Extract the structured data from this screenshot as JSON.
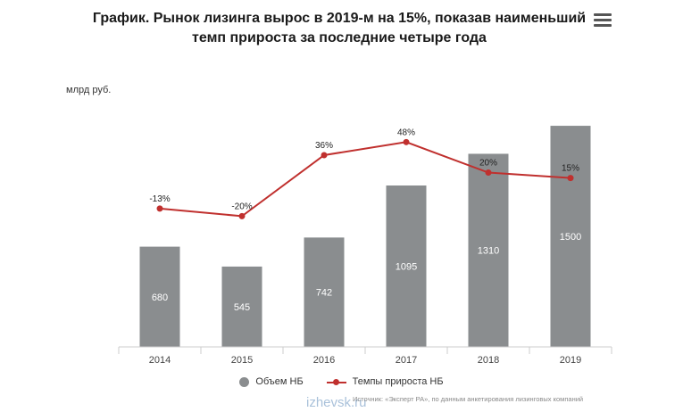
{
  "title": "График. Рынок лизинга вырос в 2019-м на 15%, показав наименьший темп прироста за последние четыре года",
  "unit_label": "млрд руб.",
  "menu_icon": "hamburger-menu-icon",
  "legend": {
    "bars_label": "Объем НБ",
    "line_label": "Темпы прироста НБ"
  },
  "source": "Источник: «Эксперт РА», по данным анкетирования лизинговых компаний",
  "watermark": "izhevsk.ru",
  "colors": {
    "bar": "#8a8d8f",
    "line": "#c0302e",
    "axis": "#cccccc"
  },
  "chart_data": {
    "type": "bar",
    "categories": [
      "2014",
      "2015",
      "2016",
      "2017",
      "2018",
      "2019"
    ],
    "series": [
      {
        "type": "bar",
        "values": [
          680,
          545,
          742,
          1095,
          1310,
          1500
        ],
        "value_labels": [
          "680",
          "545",
          "742",
          "1095",
          "1310",
          "1500"
        ]
      },
      {
        "type": "line",
        "values": [
          -13,
          -20,
          36,
          48,
          20,
          15
        ],
        "value_labels": [
          "-13%",
          "-20%",
          "36%",
          "48%",
          "20%",
          "15%"
        ]
      }
    ],
    "ylabel": "млрд руб.",
    "ylim": [
      0,
      1700
    ],
    "y2lim": [
      -140,
      90
    ],
    "grid": false,
    "legend_position": "bottom"
  }
}
